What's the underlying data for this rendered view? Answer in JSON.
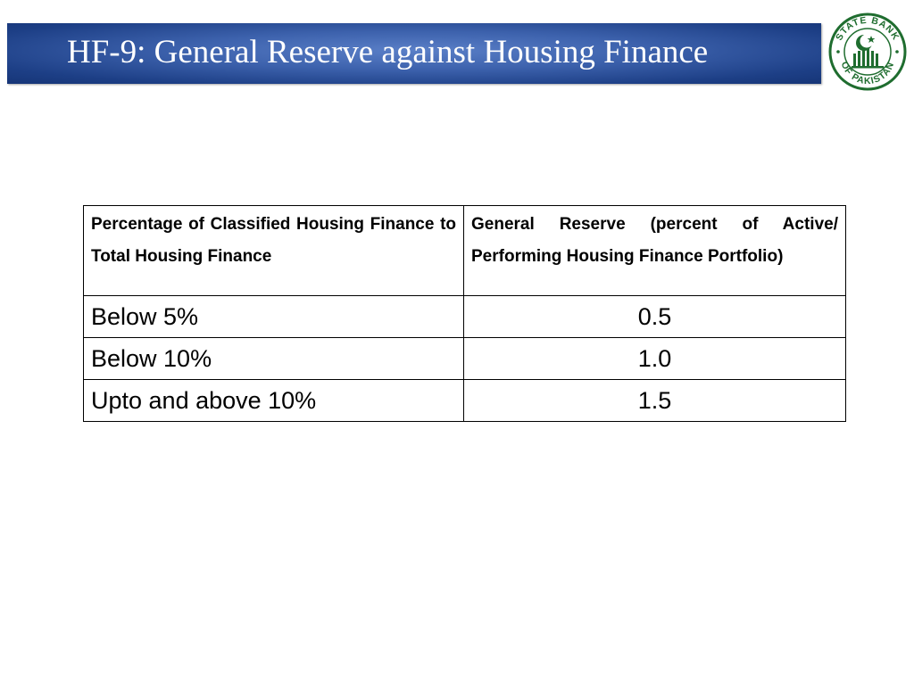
{
  "slide": {
    "title": "HF-9: General Reserve against Housing Finance"
  },
  "logo": {
    "top_text": "STATE BANK",
    "bottom_text": "OF PAKISTAN",
    "colors": {
      "ring": "#1f6d2f",
      "fill": "#ffffff"
    }
  },
  "colors": {
    "title_bar": "#2f55a4",
    "title_text": "#ffffff",
    "table_border": "#000000"
  },
  "table": {
    "headers": [
      "Percentage of Classified Housing Finance to Total Housing Finance",
      "General Reserve (percent of Active/ Performing Housing Finance Portfolio)"
    ],
    "rows": [
      {
        "classified": "Below 5%",
        "reserve": "0.5"
      },
      {
        "classified": "Below 10%",
        "reserve": "1.0"
      },
      {
        "classified": "Upto and above 10%",
        "reserve": "1.5"
      }
    ]
  }
}
